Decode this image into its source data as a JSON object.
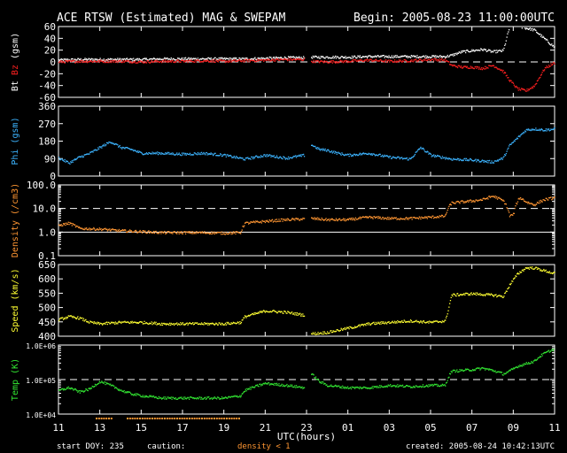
{
  "header": {
    "title": "ACE RTSW (Estimated) MAG & SWEPAM",
    "begin": "Begin: 2005-08-23 11:00:00UTC"
  },
  "footer": {
    "start_doy": "start DOY: 235",
    "caution": "caution:",
    "density_note": "density < 1",
    "created": "created: 2005-08-24 10:42:13UTC"
  },
  "colors": {
    "bt": "#ffffff",
    "bz": "#ff2020",
    "phi": "#3cb4ff",
    "density": "#ff9632",
    "speed": "#ffff32",
    "temp": "#32e632",
    "caution": "#ff9632"
  },
  "chart_data": {
    "type": "scatter",
    "xlabel": "UTC(hours)",
    "x_ticks": [
      "11",
      "13",
      "15",
      "17",
      "19",
      "21",
      "23",
      "01",
      "03",
      "05",
      "07",
      "09",
      "11"
    ],
    "x_range_hours": [
      0,
      24
    ],
    "gap_hours": [
      11.9,
      12.2
    ],
    "caution_hours": [
      [
        1.8,
        2.6
      ],
      [
        3.3,
        8.8
      ]
    ],
    "panels": [
      {
        "id": "mag",
        "ylabel_parts": [
          "Bt",
          "Bz",
          "(gsm)"
        ],
        "ylim": [
          -60,
          60
        ],
        "ticks": [
          -60,
          -40,
          -20,
          0,
          20,
          40,
          60
        ],
        "tick_labels": [
          "-60",
          "-40",
          "-20",
          "0",
          "20",
          "40",
          "60"
        ],
        "scale": "linear",
        "dashed_at": 0,
        "series": [
          {
            "name": "Bt",
            "color": "#ffffff",
            "points": [
              [
                0,
                4
              ],
              [
                1,
                5
              ],
              [
                2,
                5
              ],
              [
                3,
                5
              ],
              [
                4,
                5
              ],
              [
                5,
                6
              ],
              [
                6,
                6
              ],
              [
                7,
                6
              ],
              [
                8,
                6
              ],
              [
                9,
                6
              ],
              [
                10,
                7
              ],
              [
                11,
                8
              ],
              [
                11.9,
                8
              ],
              [
                12.2,
                9
              ],
              [
                13,
                9
              ],
              [
                14,
                9
              ],
              [
                15,
                10
              ],
              [
                16,
                10
              ],
              [
                17,
                10
              ],
              [
                18,
                10
              ],
              [
                18.7,
                10
              ],
              [
                19,
                12
              ],
              [
                19.5,
                18
              ],
              [
                20,
                20
              ],
              [
                20.5,
                22
              ],
              [
                21,
                18
              ],
              [
                21.5,
                20
              ],
              [
                21.8,
                60
              ],
              [
                22.2,
                62
              ],
              [
                22.6,
                58
              ],
              [
                23,
                55
              ],
              [
                23.5,
                40
              ],
              [
                24,
                25
              ]
            ]
          },
          {
            "name": "Bz",
            "color": "#ff2020",
            "points": [
              [
                0,
                1
              ],
              [
                1,
                2
              ],
              [
                2,
                2
              ],
              [
                3,
                2
              ],
              [
                4,
                1
              ],
              [
                5,
                2
              ],
              [
                6,
                2
              ],
              [
                7,
                3
              ],
              [
                8,
                2
              ],
              [
                9,
                3
              ],
              [
                10,
                4
              ],
              [
                11,
                5
              ],
              [
                11.9,
                5
              ],
              [
                12.2,
                2
              ],
              [
                13,
                1
              ],
              [
                14,
                2
              ],
              [
                15,
                4
              ],
              [
                16,
                2
              ],
              [
                17,
                3
              ],
              [
                18,
                5
              ],
              [
                18.7,
                4
              ],
              [
                19,
                -5
              ],
              [
                19.5,
                -8
              ],
              [
                20,
                -8
              ],
              [
                20.5,
                -10
              ],
              [
                21,
                -5
              ],
              [
                21.5,
                -15
              ],
              [
                21.8,
                -30
              ],
              [
                22.2,
                -45
              ],
              [
                22.6,
                -48
              ],
              [
                23,
                -40
              ],
              [
                23.5,
                -10
              ],
              [
                24,
                0
              ]
            ]
          }
        ]
      },
      {
        "id": "phi",
        "ylabel_parts": [
          "Phi (gsm)"
        ],
        "ylim": [
          0,
          360
        ],
        "ticks": [
          0,
          90,
          180,
          270,
          360
        ],
        "tick_labels": [
          "0",
          "90",
          "180",
          "270",
          "360"
        ],
        "scale": "linear",
        "series": [
          {
            "name": "Phi",
            "color": "#3cb4ff",
            "points": [
              [
                0,
                95
              ],
              [
                0.5,
                70
              ],
              [
                1,
                100
              ],
              [
                1.5,
                120
              ],
              [
                2,
                150
              ],
              [
                2.5,
                180
              ],
              [
                3,
                150
              ],
              [
                3.5,
                140
              ],
              [
                4,
                120
              ],
              [
                5,
                120
              ],
              [
                6,
                115
              ],
              [
                7,
                120
              ],
              [
                8,
                110
              ],
              [
                9,
                90
              ],
              [
                10,
                110
              ],
              [
                11,
                95
              ],
              [
                11.9,
                110
              ],
              [
                12.2,
                165
              ],
              [
                12.6,
                140
              ],
              [
                13,
                135
              ],
              [
                13.5,
                120
              ],
              [
                14,
                110
              ],
              [
                15,
                120
              ],
              [
                16,
                100
              ],
              [
                17,
                90
              ],
              [
                17.5,
                150
              ],
              [
                18,
                110
              ],
              [
                18.5,
                100
              ],
              [
                19,
                90
              ],
              [
                20,
                85
              ],
              [
                20.5,
                80
              ],
              [
                21,
                75
              ],
              [
                21.5,
                95
              ],
              [
                21.8,
                160
              ],
              [
                22.2,
                200
              ],
              [
                22.6,
                240
              ],
              [
                23,
                245
              ],
              [
                23.5,
                240
              ],
              [
                24,
                245
              ]
            ]
          }
        ]
      },
      {
        "id": "density",
        "ylabel_parts": [
          "Density (/cm3)"
        ],
        "ylim": [
          0.1,
          100
        ],
        "ticks": [
          0.1,
          1,
          10,
          100
        ],
        "tick_labels": [
          "0.1",
          "1.0",
          "10.0",
          "100.0"
        ],
        "scale": "log",
        "dashed_at": 10,
        "solid_at": 1,
        "series": [
          {
            "name": "Density",
            "color": "#ff9632",
            "points": [
              [
                0,
                2.0
              ],
              [
                0.5,
                2.5
              ],
              [
                1,
                1.5
              ],
              [
                2,
                1.4
              ],
              [
                3,
                1.2
              ],
              [
                4,
                1.1
              ],
              [
                5,
                1.0
              ],
              [
                6,
                1.0
              ],
              [
                7,
                1.0
              ],
              [
                8,
                0.95
              ],
              [
                8.8,
                1.0
              ],
              [
                9,
                2.5
              ],
              [
                10,
                3.0
              ],
              [
                11,
                3.5
              ],
              [
                11.9,
                3.8
              ],
              [
                12.2,
                4.0
              ],
              [
                13,
                3.5
              ],
              [
                14,
                3.5
              ],
              [
                15,
                4.5
              ],
              [
                16,
                4.0
              ],
              [
                17,
                4.0
              ],
              [
                18,
                4.5
              ],
              [
                18.7,
                5.0
              ],
              [
                19,
                18
              ],
              [
                19.5,
                20
              ],
              [
                20,
                22
              ],
              [
                20.5,
                25
              ],
              [
                21,
                35
              ],
              [
                21.5,
                22
              ],
              [
                21.8,
                5
              ],
              [
                22,
                6
              ],
              [
                22.3,
                30
              ],
              [
                22.6,
                20
              ],
              [
                23,
                15
              ],
              [
                23.5,
                25
              ],
              [
                24,
                30
              ]
            ]
          }
        ]
      },
      {
        "id": "speed",
        "ylabel_parts": [
          "Speed (km/s)"
        ],
        "ylim": [
          400,
          650
        ],
        "ticks": [
          400,
          450,
          500,
          550,
          600,
          650
        ],
        "tick_labels": [
          "400",
          "450",
          "500",
          "550",
          "600",
          "650"
        ],
        "scale": "linear",
        "series": [
          {
            "name": "Speed",
            "color": "#ffff32",
            "points": [
              [
                0,
                460
              ],
              [
                0.5,
                470
              ],
              [
                1,
                465
              ],
              [
                1.5,
                450
              ],
              [
                2,
                445
              ],
              [
                3,
                450
              ],
              [
                4,
                450
              ],
              [
                5,
                445
              ],
              [
                6,
                445
              ],
              [
                7,
                445
              ],
              [
                8,
                445
              ],
              [
                8.8,
                450
              ],
              [
                9,
                470
              ],
              [
                10,
                490
              ],
              [
                11,
                485
              ],
              [
                11.9,
                475
              ],
              [
                12.2,
                410
              ],
              [
                13,
                415
              ],
              [
                14,
                430
              ],
              [
                15,
                445
              ],
              [
                16,
                450
              ],
              [
                17,
                455
              ],
              [
                18,
                450
              ],
              [
                18.7,
                455
              ],
              [
                19,
                545
              ],
              [
                20,
                550
              ],
              [
                21,
                545
              ],
              [
                21.5,
                540
              ],
              [
                21.8,
                580
              ],
              [
                22.2,
                620
              ],
              [
                22.6,
                640
              ],
              [
                23,
                640
              ],
              [
                23.5,
                630
              ],
              [
                24,
                620
              ]
            ]
          }
        ]
      },
      {
        "id": "temp",
        "ylabel_parts": [
          "Temp (K)"
        ],
        "ylim": [
          10000,
          1000000
        ],
        "ticks": [
          10000,
          100000,
          1000000
        ],
        "tick_labels": [
          "1.0E+04",
          "1.0E+05",
          "1.0E+06"
        ],
        "scale": "log",
        "dashed_at": 100000,
        "series": [
          {
            "name": "Temp",
            "color": "#32e632",
            "points": [
              [
                0,
                50000
              ],
              [
                0.5,
                60000
              ],
              [
                1,
                45000
              ],
              [
                1.5,
                55000
              ],
              [
                2,
                90000
              ],
              [
                2.5,
                70000
              ],
              [
                3,
                50000
              ],
              [
                3.5,
                40000
              ],
              [
                4,
                35000
              ],
              [
                5,
                30000
              ],
              [
                6,
                30000
              ],
              [
                7,
                30000
              ],
              [
                8,
                30000
              ],
              [
                8.8,
                35000
              ],
              [
                9,
                50000
              ],
              [
                10,
                80000
              ],
              [
                11,
                70000
              ],
              [
                11.9,
                60000
              ],
              [
                12.2,
                150000
              ],
              [
                12.6,
                90000
              ],
              [
                13,
                70000
              ],
              [
                14,
                60000
              ],
              [
                15,
                60000
              ],
              [
                16,
                70000
              ],
              [
                17,
                65000
              ],
              [
                18,
                70000
              ],
              [
                18.7,
                70000
              ],
              [
                19,
                180000
              ],
              [
                20,
                200000
              ],
              [
                20.5,
                220000
              ],
              [
                21,
                190000
              ],
              [
                21.5,
                150000
              ],
              [
                21.8,
                180000
              ],
              [
                22.2,
                250000
              ],
              [
                22.6,
                300000
              ],
              [
                23,
                350000
              ],
              [
                23.5,
                600000
              ],
              [
                24,
                800000
              ]
            ]
          }
        ]
      }
    ]
  }
}
